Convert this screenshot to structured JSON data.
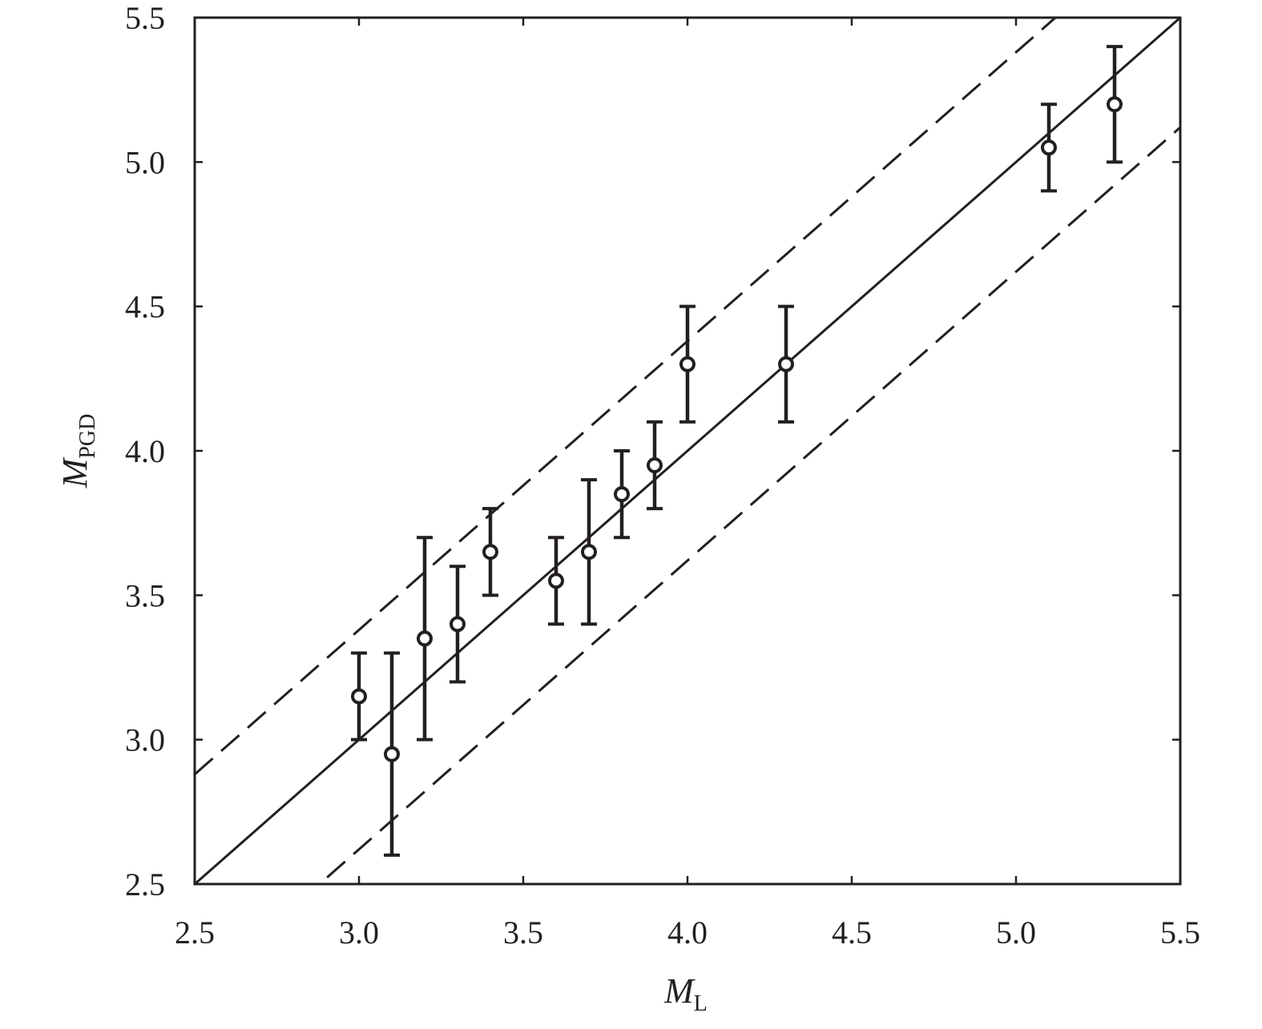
{
  "colors": {
    "ink": "#231f20",
    "background": "#ffffff"
  },
  "chart_data": {
    "type": "scatter",
    "title": "",
    "xlabel": {
      "main": "M",
      "sub": "L"
    },
    "ylabel": {
      "main": "M",
      "sub": "PGD"
    },
    "xlim": [
      2.5,
      5.5
    ],
    "ylim": [
      2.5,
      5.5
    ],
    "xticks": [
      "2.5",
      "3.0",
      "3.5",
      "4.0",
      "4.5",
      "5.0",
      "5.5"
    ],
    "yticks": [
      "2.5",
      "3.0",
      "3.5",
      "4.0",
      "4.5",
      "5.0",
      "5.5"
    ],
    "grid": false,
    "legend": "none",
    "points": [
      {
        "x": 3.0,
        "y": 3.15,
        "y_low": 3.0,
        "y_high": 3.3
      },
      {
        "x": 3.1,
        "y": 2.95,
        "y_low": 2.6,
        "y_high": 3.3
      },
      {
        "x": 3.2,
        "y": 3.35,
        "y_low": 3.0,
        "y_high": 3.7
      },
      {
        "x": 3.3,
        "y": 3.4,
        "y_low": 3.2,
        "y_high": 3.6
      },
      {
        "x": 3.4,
        "y": 3.65,
        "y_low": 3.5,
        "y_high": 3.8
      },
      {
        "x": 3.6,
        "y": 3.55,
        "y_low": 3.4,
        "y_high": 3.7
      },
      {
        "x": 3.7,
        "y": 3.65,
        "y_low": 3.4,
        "y_high": 3.9
      },
      {
        "x": 3.8,
        "y": 3.85,
        "y_low": 3.7,
        "y_high": 4.0
      },
      {
        "x": 3.9,
        "y": 3.95,
        "y_low": 3.8,
        "y_high": 4.1
      },
      {
        "x": 4.0,
        "y": 4.3,
        "y_low": 4.1,
        "y_high": 4.5
      },
      {
        "x": 4.3,
        "y": 4.3,
        "y_low": 4.1,
        "y_high": 4.5
      },
      {
        "x": 5.1,
        "y": 5.05,
        "y_low": 4.9,
        "y_high": 5.2
      },
      {
        "x": 5.3,
        "y": 5.2,
        "y_low": 5.0,
        "y_high": 5.4
      }
    ],
    "reference_lines": [
      {
        "style": "solid",
        "slope": 1,
        "intercept": 0
      },
      {
        "style": "dashed",
        "slope": 1,
        "intercept": 0.38
      },
      {
        "style": "dashed",
        "slope": 1,
        "intercept": -0.38
      }
    ]
  }
}
